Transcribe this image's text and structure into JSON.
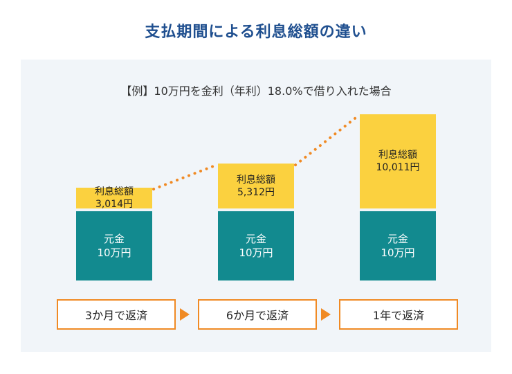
{
  "title": "支払期間による利息総額の違い",
  "chart_data": {
    "type": "bar",
    "stacked": true,
    "subtitle": "【例】10万円を金利（年利）18.0%で借り入れた場合",
    "categories": [
      "3か月で返済",
      "6か月で返済",
      "1年で返済"
    ],
    "series": [
      {
        "name": "元金",
        "values": [
          100000,
          100000,
          100000
        ],
        "labels": [
          "10万円",
          "10万円",
          "10万円"
        ],
        "color": "#128a8f"
      },
      {
        "name": "利息総額",
        "values": [
          3014,
          5312,
          10011
        ],
        "labels": [
          "3,014円",
          "5,312円",
          "10,011円"
        ],
        "color": "#fbd13f"
      }
    ],
    "trend_line": {
      "style": "dotted",
      "color": "#f08a24"
    },
    "legend": "none",
    "grid": false
  },
  "colors": {
    "step_border": "#f08a24",
    "title": "#1f4f8f",
    "panel_bg": "#f1f5f9"
  }
}
